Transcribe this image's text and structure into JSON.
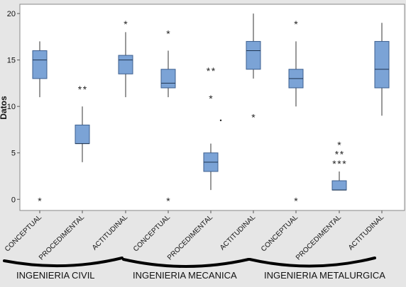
{
  "chart_data": {
    "type": "boxplot",
    "ylabel": "Datos",
    "ylim": [
      -1.2,
      21
    ],
    "yticks": [
      0,
      5,
      10,
      15,
      20
    ],
    "grid": false,
    "colors": {
      "box_fill": "#7ba3d6",
      "box_stroke": "#3d5f8f",
      "plot_bg": "#ffffff",
      "outer_bg": "#e6e6e6"
    },
    "categories": [
      "CONCEPTUAL",
      "PROCEDIMENTAL",
      "ACTITUDINAL",
      "CONCEPTUAL",
      "PROCEDIMENTAL",
      "ACTITUDINAL",
      "CONCEPTUAL",
      "PROCEDIMENTAL",
      "ACTITUDINAL"
    ],
    "groups": [
      {
        "label": "INGENIERIA CIVIL",
        "members": [
          0,
          1,
          2
        ]
      },
      {
        "label": "INGENIERIA MECANICA",
        "members": [
          3,
          4,
          5
        ]
      },
      {
        "label": "INGENIERIA METALURGICA",
        "members": [
          6,
          7,
          8
        ]
      }
    ],
    "boxes": [
      {
        "group": "INGENIERIA CIVIL",
        "category": "CONCEPTUAL",
        "whisker_low": 11,
        "q1": 13,
        "median": 15,
        "q3": 16,
        "whisker_high": 17,
        "outliers": [
          0
        ]
      },
      {
        "group": "INGENIERIA CIVIL",
        "category": "PROCEDIMENTAL",
        "whisker_low": 4,
        "q1": 6,
        "median": 6,
        "q3": 8,
        "whisker_high": 10,
        "outliers": [
          12,
          12
        ]
      },
      {
        "group": "INGENIERIA CIVIL",
        "category": "ACTITUDINAL",
        "whisker_low": 11,
        "q1": 13.5,
        "median": 15,
        "q3": 15.5,
        "whisker_high": 18,
        "outliers": [
          19
        ]
      },
      {
        "group": "INGENIERIA MECANICA",
        "category": "CONCEPTUAL",
        "whisker_low": 11,
        "q1": 12,
        "median": 12.5,
        "q3": 14,
        "whisker_high": 16,
        "outliers": [
          18,
          0
        ]
      },
      {
        "group": "INGENIERIA MECANICA",
        "category": "PROCEDIMENTAL",
        "whisker_low": 1,
        "q1": 3,
        "median": 4,
        "q3": 5,
        "whisker_high": 6,
        "outliers": [
          14,
          14,
          11,
          8.5
        ]
      },
      {
        "group": "INGENIERIA MECANICA",
        "category": "ACTITUDINAL",
        "whisker_low": 13,
        "q1": 14,
        "median": 16,
        "q3": 17,
        "whisker_high": 20,
        "outliers": [
          9
        ]
      },
      {
        "group": "INGENIERIA METALURGICA",
        "category": "CONCEPTUAL",
        "whisker_low": 10,
        "q1": 12,
        "median": 13,
        "q3": 14,
        "whisker_high": 17,
        "outliers": [
          19,
          0
        ]
      },
      {
        "group": "INGENIERIA METALURGICA",
        "category": "PROCEDIMENTAL",
        "whisker_low": 1,
        "q1": 1,
        "median": 1,
        "q3": 2,
        "whisker_high": 3,
        "outliers": [
          4,
          4,
          4,
          5,
          5,
          6
        ]
      },
      {
        "group": "INGENIERIA METALURGICA",
        "category": "ACTITUDINAL",
        "whisker_low": 9,
        "q1": 12,
        "median": 14,
        "q3": 17,
        "whisker_high": 19,
        "outliers": []
      }
    ]
  }
}
